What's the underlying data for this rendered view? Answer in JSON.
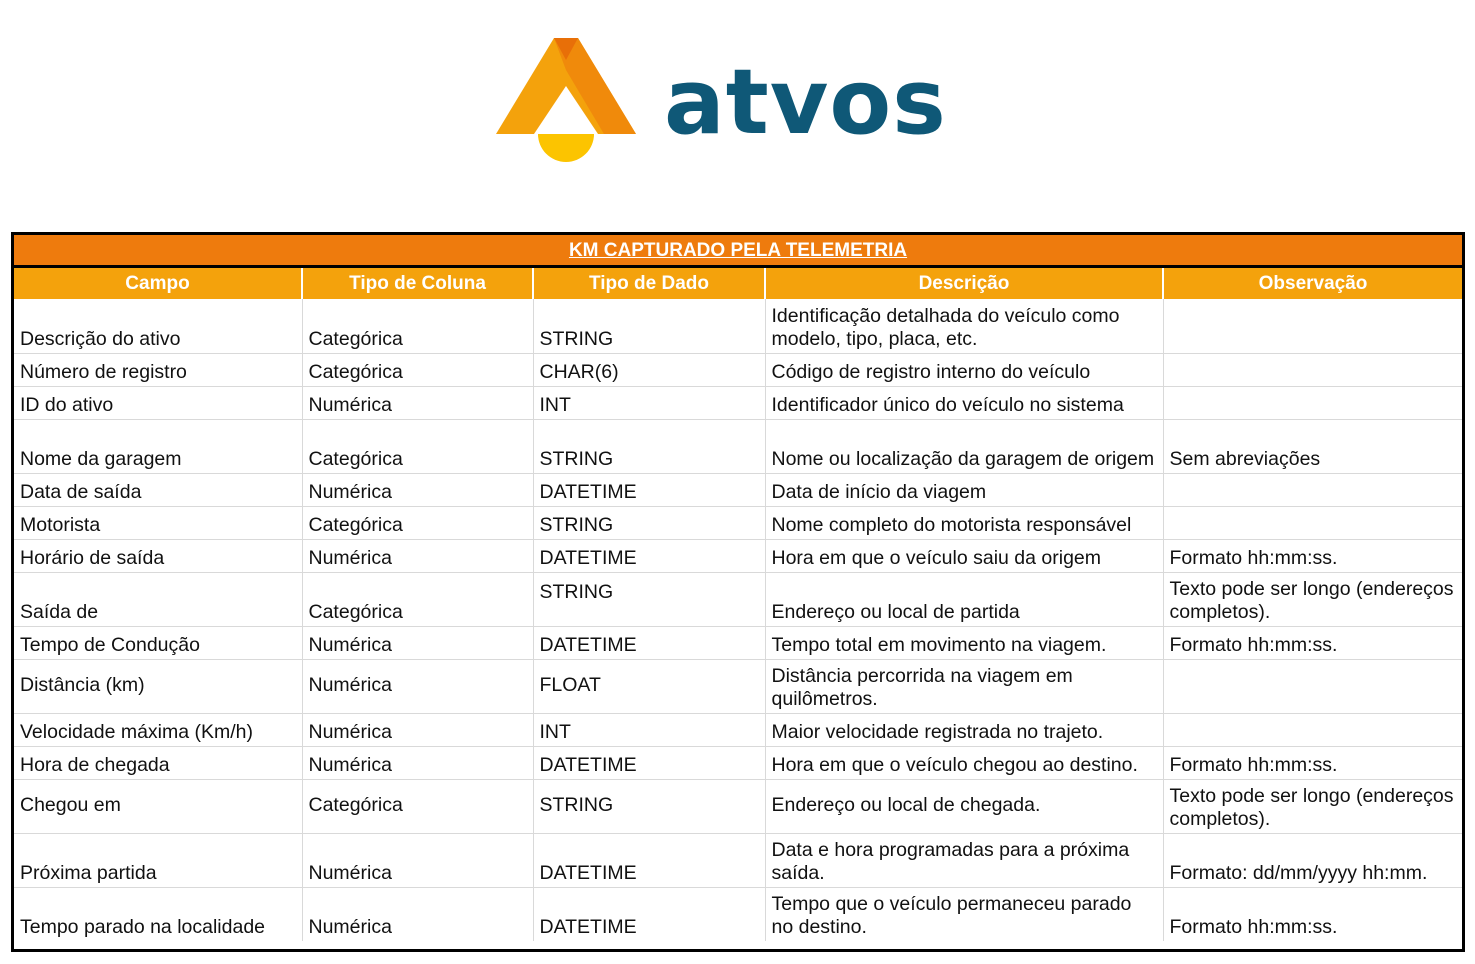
{
  "logo": {
    "wordmark": "atvos",
    "colors": {
      "primary_orange": "#f4a20c",
      "dark_orange": "#ec7a0a",
      "yellow": "#fcc400",
      "navy": "#0f5877"
    }
  },
  "table": {
    "title": "KM CAPTURADO PELA TELEMETRIA",
    "header_colors": {
      "title_bg": "#ee7b0d",
      "header_bg": "#f4a20c"
    },
    "columns": [
      "Campo",
      "Tipo de Coluna",
      "Tipo de Dado",
      "Descrição",
      "Observação"
    ],
    "rows": [
      {
        "campo": "Descrição do ativo",
        "tipo_coluna": "Categórica",
        "tipo_dado": "STRING",
        "descricao": "Identificação detalhada do veículo como modelo, tipo, placa, etc.",
        "observacao": ""
      },
      {
        "campo": "Número de registro",
        "tipo_coluna": "Categórica",
        "tipo_dado": "CHAR(6)",
        "descricao": "Código de registro interno do veículo",
        "observacao": ""
      },
      {
        "campo": "ID do ativo",
        "tipo_coluna": "Numérica",
        "tipo_dado": "INT",
        "descricao": "Identificador único do veículo no sistema",
        "observacao": ""
      },
      {
        "campo": "Nome da garagem",
        "tipo_coluna": "Categórica",
        "tipo_dado": "STRING",
        "descricao": "Nome ou localização da garagem de origem",
        "observacao": "Sem abreviações"
      },
      {
        "campo": "Data de saída",
        "tipo_coluna": "Numérica",
        "tipo_dado": "DATETIME",
        "descricao": "Data de início da viagem",
        "observacao": ""
      },
      {
        "campo": "Motorista",
        "tipo_coluna": "Categórica",
        "tipo_dado": "STRING",
        "descricao": "Nome completo do motorista responsável",
        "observacao": ""
      },
      {
        "campo": "Horário de saída",
        "tipo_coluna": "Numérica",
        "tipo_dado": "DATETIME",
        "descricao": "Hora em que o veículo saiu da origem",
        "observacao": "Formato hh:mm:ss."
      },
      {
        "campo": "Saída de",
        "tipo_coluna": "Categórica",
        "tipo_dado": "STRING",
        "descricao": "Endereço ou local de partida",
        "observacao": "Texto pode ser longo (endereços completos)."
      },
      {
        "campo": "Tempo de Condução",
        "tipo_coluna": "Numérica",
        "tipo_dado": "DATETIME",
        "descricao": "Tempo total em movimento na viagem.",
        "observacao": "Formato hh:mm:ss."
      },
      {
        "campo": "Distância (km)",
        "tipo_coluna": "Numérica",
        "tipo_dado": "FLOAT",
        "descricao": "Distância percorrida na viagem em quilômetros.",
        "observacao": ""
      },
      {
        "campo": "Velocidade máxima (Km/h)",
        "tipo_coluna": "Numérica",
        "tipo_dado": "INT",
        "descricao": "Maior velocidade registrada no trajeto.",
        "observacao": ""
      },
      {
        "campo": "Hora de chegada",
        "tipo_coluna": "Numérica",
        "tipo_dado": "DATETIME",
        "descricao": "Hora em que o veículo chegou ao destino.",
        "observacao": "Formato hh:mm:ss."
      },
      {
        "campo": "Chegou em",
        "tipo_coluna": "Categórica",
        "tipo_dado": "STRING",
        "descricao": "Endereço ou local de chegada.",
        "observacao": "Texto pode ser longo (endereços completos)."
      },
      {
        "campo": "Próxima partida",
        "tipo_coluna": "Numérica",
        "tipo_dado": "DATETIME",
        "descricao": "Data e hora programadas para a próxima saída.",
        "observacao": "Formato: dd/mm/yyyy hh:mm."
      },
      {
        "campo": "Tempo parado na localidade",
        "tipo_coluna": "Numérica",
        "tipo_dado": "DATETIME",
        "descricao": "Tempo que o veículo permaneceu parado no destino.",
        "observacao": "Formato hh:mm:ss."
      }
    ]
  }
}
